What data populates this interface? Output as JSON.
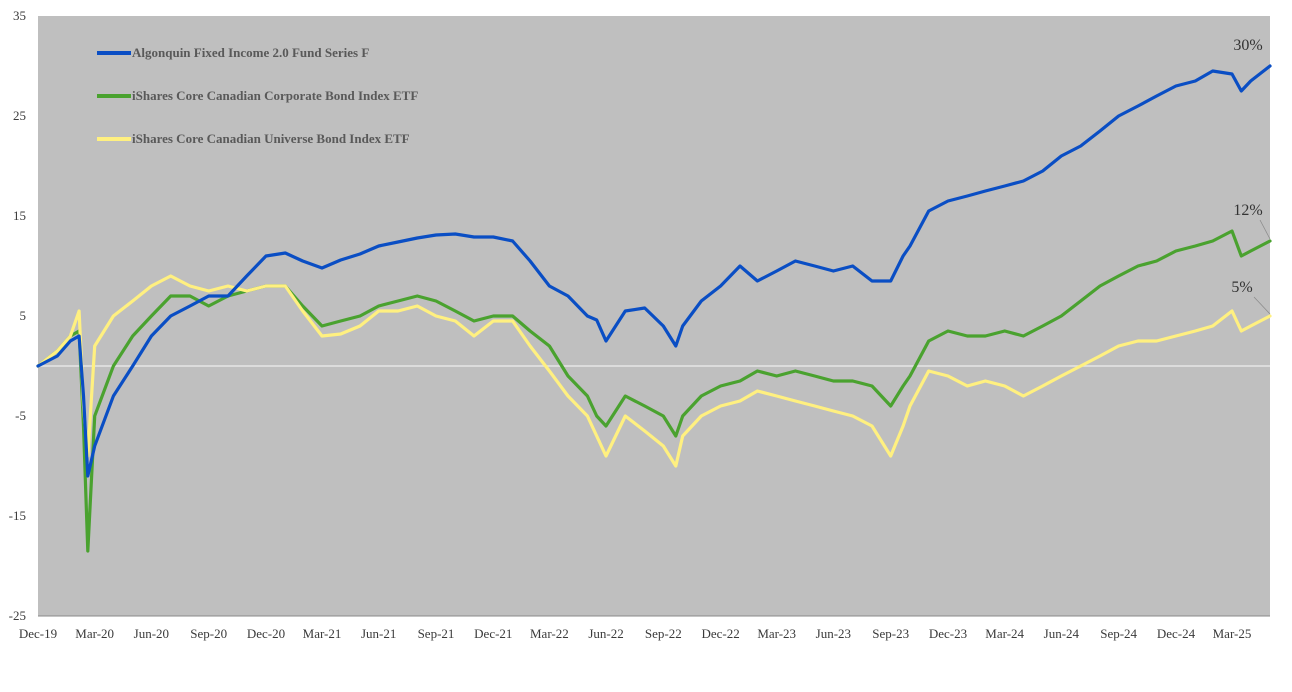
{
  "chart_data": {
    "type": "line",
    "title": "",
    "xlabel": "",
    "ylabel": "",
    "ylim": [
      -25,
      35
    ],
    "yticks": [
      35,
      25,
      15,
      5,
      -5,
      -15,
      -25
    ],
    "xlim": [
      "2019-12-31",
      "2025-05-31"
    ],
    "xticks": [
      "Dec-19",
      "Mar-20",
      "Jun-20",
      "Sep-20",
      "Dec-20",
      "Mar-21",
      "Jun-21",
      "Sep-21",
      "Dec-21",
      "Mar-22",
      "Jun-22",
      "Sep-22",
      "Dec-22",
      "Mar-23",
      "Jun-23",
      "Sep-23",
      "Dec-23",
      "Mar-24",
      "Jun-24",
      "Sep-24",
      "Dec-24",
      "Mar-25"
    ],
    "grid": false,
    "zero_line": true,
    "legend_position": "top-left",
    "background": "#bfbfbf",
    "x": [
      "2019-12-31",
      "2020-01-31",
      "2020-02-21",
      "2020-03-06",
      "2020-03-13",
      "2020-03-20",
      "2020-03-31",
      "2020-04-30",
      "2020-05-31",
      "2020-06-30",
      "2020-07-31",
      "2020-08-31",
      "2020-09-30",
      "2020-10-31",
      "2020-11-30",
      "2020-12-31",
      "2021-01-31",
      "2021-02-28",
      "2021-03-31",
      "2021-04-30",
      "2021-05-31",
      "2021-06-30",
      "2021-07-31",
      "2021-08-31",
      "2021-09-30",
      "2021-10-31",
      "2021-11-30",
      "2021-12-31",
      "2022-01-31",
      "2022-02-28",
      "2022-03-31",
      "2022-04-30",
      "2022-05-31",
      "2022-06-15",
      "2022-06-30",
      "2022-07-31",
      "2022-08-31",
      "2022-09-30",
      "2022-10-20",
      "2022-10-31",
      "2022-11-30",
      "2022-12-31",
      "2023-01-31",
      "2023-02-28",
      "2023-03-31",
      "2023-04-30",
      "2023-05-31",
      "2023-06-30",
      "2023-07-31",
      "2023-08-31",
      "2023-09-30",
      "2023-10-20",
      "2023-10-31",
      "2023-11-30",
      "2023-12-31",
      "2024-01-31",
      "2024-02-29",
      "2024-03-31",
      "2024-04-30",
      "2024-05-31",
      "2024-06-30",
      "2024-07-31",
      "2024-08-31",
      "2024-09-30",
      "2024-10-31",
      "2024-11-30",
      "2024-12-31",
      "2025-01-31",
      "2025-02-28",
      "2025-03-31",
      "2025-04-15",
      "2025-04-30",
      "2025-05-31"
    ],
    "series": [
      {
        "name": "Algonquin Fixed Income 2.0 Fund Series F",
        "color": "#0a4ec4",
        "values": [
          0,
          1,
          2.5,
          3,
          -3,
          -11,
          -8,
          -3,
          0,
          3,
          5,
          6,
          7,
          7,
          9,
          11,
          11.3,
          10.5,
          9.8,
          10.6,
          11.2,
          12,
          12.4,
          12.8,
          13.1,
          13.2,
          12.9,
          12.9,
          12.5,
          10.5,
          8,
          7,
          5,
          4.6,
          2.5,
          5.5,
          5.8,
          4,
          2,
          4,
          6.5,
          8,
          10,
          8.5,
          9.5,
          10.5,
          10,
          9.5,
          10,
          8.5,
          8.5,
          11,
          12,
          15.5,
          16.5,
          17,
          17.5,
          18,
          18.5,
          19.5,
          21,
          22,
          23.5,
          25,
          26,
          27,
          28,
          28.5,
          29.5,
          29.2,
          27.5,
          28.5,
          30
        ]
      },
      {
        "name": "iShares Core Canadian Corporate Bond Index ETF",
        "color": "#4aa22f",
        "values": [
          0,
          1.5,
          3,
          3.5,
          -6,
          -18.5,
          -5,
          0,
          3,
          5,
          7,
          7,
          6,
          7,
          7.5,
          8,
          8,
          6,
          4,
          4.5,
          5,
          6,
          6.5,
          7,
          6.5,
          5.5,
          4.5,
          5,
          5,
          3.5,
          2,
          -1,
          -3,
          -5,
          -6,
          -3,
          -4,
          -5,
          -7,
          -5,
          -3,
          -2,
          -1.5,
          -0.5,
          -1,
          -0.5,
          -1,
          -1.5,
          -1.5,
          -2,
          -4,
          -2,
          -1,
          2.5,
          3.5,
          3,
          3,
          3.5,
          3,
          4,
          5,
          6.5,
          8,
          9,
          10,
          10.5,
          11.5,
          12,
          12.5,
          13.5,
          11,
          11.5,
          12.5
        ]
      },
      {
        "name": "iShares Core Canadian Universe Bond Index ETF",
        "color": "#fff080",
        "values": [
          0,
          1.5,
          3,
          5.5,
          -4,
          -9,
          2,
          5,
          6.5,
          8,
          9,
          8,
          7.5,
          8,
          7.5,
          8,
          8,
          5.5,
          3,
          3.2,
          4,
          5.5,
          5.5,
          6,
          5,
          4.5,
          3,
          4.5,
          4.5,
          2,
          -0.5,
          -3,
          -5,
          -7,
          -9,
          -5,
          -6.5,
          -8,
          -10,
          -7,
          -5,
          -4,
          -3.5,
          -2.5,
          -3,
          -3.5,
          -4,
          -4.5,
          -5,
          -6,
          -9,
          -6,
          -4,
          -0.5,
          -1,
          -2,
          -1.5,
          -2,
          -3,
          -2,
          -1,
          0,
          1,
          2,
          2.5,
          2.5,
          3,
          3.5,
          4,
          5.5,
          3.5,
          4,
          5
        ]
      }
    ],
    "end_labels": [
      "30%",
      "12%",
      "5%"
    ],
    "colors": {
      "plot_bg": "#bfbfbf",
      "axis": "#888888",
      "zero_line": "#e6e6e6"
    }
  }
}
